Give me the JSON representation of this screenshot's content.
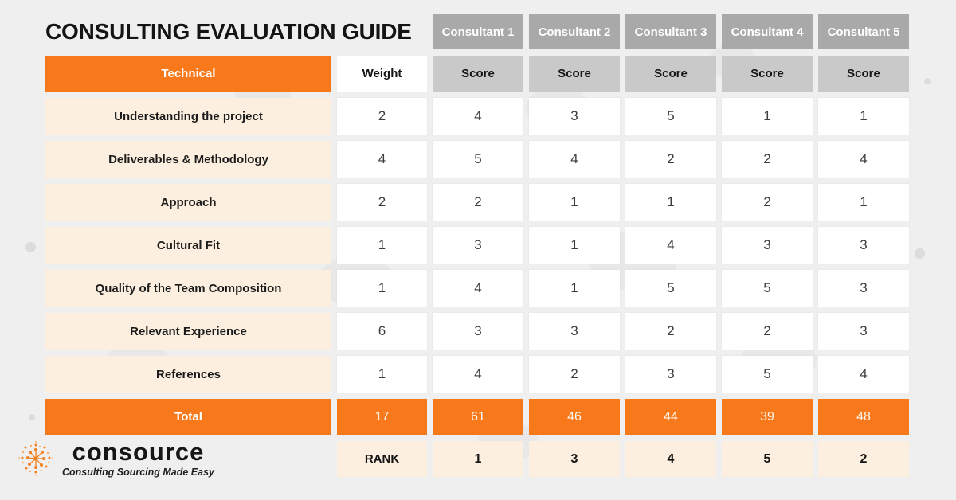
{
  "page": {
    "title": "CONSULTING EVALUATION GUIDE"
  },
  "header": {
    "consultants": [
      "Consultant 1",
      "Consultant 2",
      "Consultant 3",
      "Consultant 4",
      "Consultant 5"
    ],
    "section_label": "Technical",
    "weight_label": "Weight",
    "score_label": "Score"
  },
  "criteria": [
    {
      "label": "Understanding the project",
      "weight": "2",
      "scores": [
        "4",
        "3",
        "5",
        "1",
        "1"
      ]
    },
    {
      "label": "Deliverables & Methodology",
      "weight": "4",
      "scores": [
        "5",
        "4",
        "2",
        "2",
        "4"
      ]
    },
    {
      "label": "Approach",
      "weight": "2",
      "scores": [
        "2",
        "1",
        "1",
        "2",
        "1"
      ]
    },
    {
      "label": "Cultural Fit",
      "weight": "1",
      "scores": [
        "3",
        "1",
        "4",
        "3",
        "3"
      ]
    },
    {
      "label": "Quality of the Team Composition",
      "weight": "1",
      "scores": [
        "4",
        "1",
        "5",
        "5",
        "3"
      ]
    },
    {
      "label": "Relevant Experience",
      "weight": "6",
      "scores": [
        "3",
        "3",
        "2",
        "2",
        "3"
      ]
    },
    {
      "label": "References",
      "weight": "1",
      "scores": [
        "4",
        "2",
        "3",
        "5",
        "4"
      ]
    }
  ],
  "total": {
    "label": "Total",
    "weight_total": "17",
    "scores": [
      "61",
      "46",
      "44",
      "39",
      "48"
    ]
  },
  "rank": {
    "label": "RANK",
    "values": [
      "1",
      "3",
      "4",
      "5",
      "2"
    ]
  },
  "brand": {
    "name": "consource",
    "tagline": "Consulting Sourcing Made Easy"
  },
  "colors": {
    "accent_orange": "#f7791b",
    "consultant_header_gray": "#a9a9a9",
    "score_header_gray": "#c9c9c9",
    "label_cream": "#fcefdf",
    "background": "#efefef",
    "cell_white": "#ffffff"
  },
  "chart_data": {
    "type": "table",
    "title": "CONSULTING EVALUATION GUIDE",
    "columns": [
      "Technical",
      "Weight",
      "Consultant 1",
      "Consultant 2",
      "Consultant 3",
      "Consultant 4",
      "Consultant 5"
    ],
    "rows": [
      [
        "Understanding the project",
        2,
        4,
        3,
        5,
        1,
        1
      ],
      [
        "Deliverables & Methodology",
        4,
        5,
        4,
        2,
        2,
        4
      ],
      [
        "Approach",
        2,
        2,
        1,
        1,
        2,
        1
      ],
      [
        "Cultural Fit",
        1,
        3,
        1,
        4,
        3,
        3
      ],
      [
        "Quality of the Team Composition",
        1,
        4,
        1,
        5,
        5,
        3
      ],
      [
        "Relevant Experience",
        6,
        3,
        3,
        2,
        2,
        3
      ],
      [
        "References",
        1,
        4,
        2,
        3,
        5,
        4
      ]
    ],
    "totals": [
      "Total",
      17,
      61,
      46,
      44,
      39,
      48
    ],
    "ranks": [
      "RANK",
      null,
      1,
      3,
      4,
      5,
      2
    ]
  }
}
